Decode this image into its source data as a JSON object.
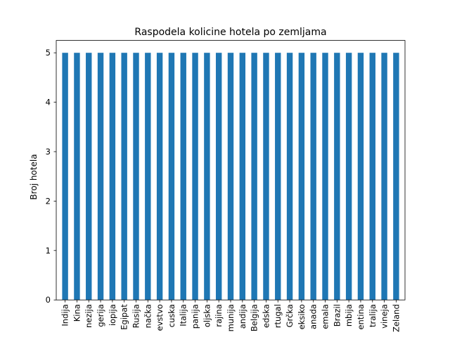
{
  "chart_data": {
    "type": "bar",
    "title": "Raspodela kolicine hotela po zemljama",
    "xlabel": "",
    "ylabel": "Broj hotela",
    "categories": [
      "Indija",
      "Kina",
      "nezija",
      "gerija",
      "iopija",
      "Egipat",
      "Rusija",
      "načka",
      "evstvo",
      "cuska",
      "Italija",
      "panija",
      "oljska",
      "rajina",
      "munija",
      "andija",
      "Belgija",
      "edska",
      "rtugal",
      "Grčka",
      "eksiko",
      "anada",
      "emala",
      "Brazil",
      "mbija",
      "entina",
      "tralija",
      "vineja",
      "Zeland"
    ],
    "values": [
      5,
      5,
      5,
      5,
      5,
      5,
      5,
      5,
      5,
      5,
      5,
      5,
      5,
      5,
      5,
      5,
      5,
      5,
      5,
      5,
      5,
      5,
      5,
      5,
      5,
      5,
      5,
      5,
      5
    ],
    "ylim": [
      0,
      5.25
    ],
    "yticks": [
      0,
      1,
      2,
      3,
      4,
      5
    ],
    "bar_color": "#1f77b4",
    "grid": false,
    "legend": "none"
  }
}
